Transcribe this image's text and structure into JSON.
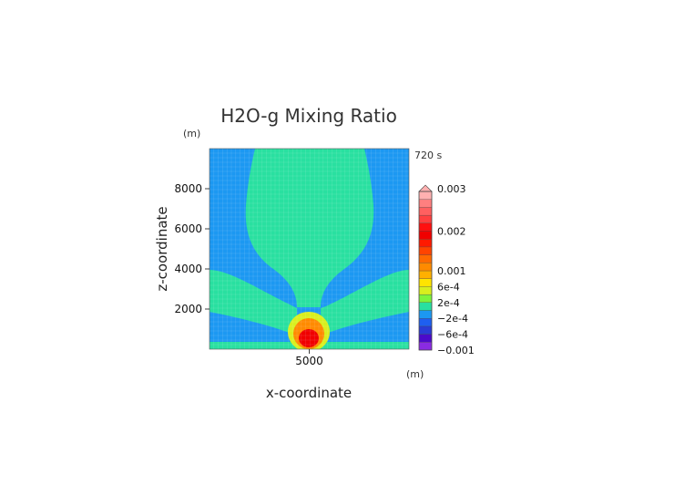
{
  "chart_data": {
    "type": "heatmap",
    "title": "H2O-g Mixing Ratio",
    "xlabel": "x-coordinate",
    "ylabel": "z-coordinate",
    "x_unit": "(m)",
    "y_unit": "(m)",
    "time_label": "720 s",
    "xlim": [
      0,
      10000
    ],
    "ylim": [
      0,
      10000
    ],
    "x_ticks": [
      5000
    ],
    "y_ticks": [
      2000,
      4000,
      6000,
      8000
    ],
    "colorbar": {
      "levels": [
        -0.001,
        -0.0008,
        -0.0006,
        -0.0004,
        -0.0002,
        0,
        0.0002,
        0.0004,
        0.0006,
        0.0008,
        0.001,
        0.0012,
        0.0014,
        0.0016,
        0.0018,
        0.002,
        0.0022,
        0.0024,
        0.0026,
        0.0028,
        0.003
      ],
      "colors": [
        "#8a2be2",
        "#4b0acb",
        "#2a3cd6",
        "#1e5ff0",
        "#1c98f2",
        "#29e0a0",
        "#7cf43c",
        "#d8ef1e",
        "#ffe400",
        "#ffb000",
        "#ff8a00",
        "#ff6a00",
        "#ff4400",
        "#ff1a00",
        "#f00000",
        "#ff1010",
        "#ff4040",
        "#ff6060",
        "#ff7f7f",
        "#ffb0b0"
      ],
      "tick_labels": [
        "0.003",
        "0.002",
        "0.001",
        "6e-4",
        "2e-4",
        "−2e-4",
        "−6e-4",
        "−0.001"
      ],
      "tick_values": [
        0.003,
        0.002,
        0.001,
        0.0006,
        0.0002,
        -0.0002,
        -0.0006,
        -0.001
      ]
    },
    "field_colors": {
      "background": "#1c98f2",
      "plume": "#29e0a0",
      "core_yellow": "#d8ef1e",
      "core_orange": "#ff8a00",
      "core_red": "#f00000",
      "floor": "#29e0a0"
    },
    "grid": true
  }
}
